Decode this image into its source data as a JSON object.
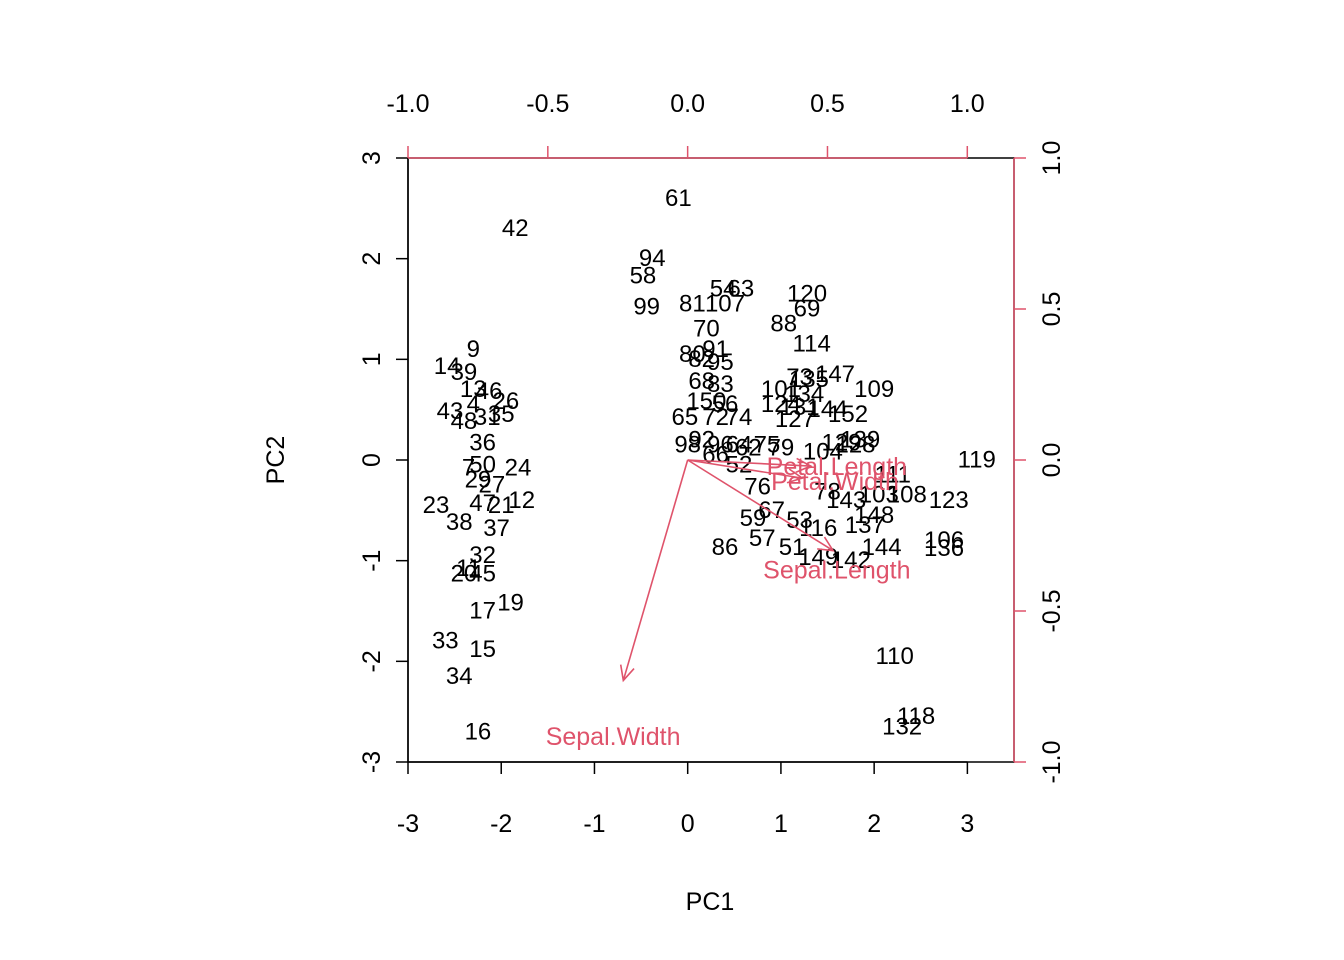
{
  "colors": {
    "points": "#000000",
    "loadings": "#DF536B",
    "frame": "#000000"
  },
  "chart_data": {
    "type": "scatter",
    "subtype": "biplot",
    "xlabel": "PC1",
    "ylabel": "PC2",
    "xlim": [
      -3,
      3.5
    ],
    "ylim": [
      -3,
      3
    ],
    "x_ticks": [
      "-3",
      "-2",
      "-1",
      "0",
      "1",
      "2",
      "3"
    ],
    "y_ticks": [
      "-3",
      "-2",
      "-1",
      "0",
      "1",
      "2",
      "3"
    ],
    "loading_axis_ticks_top": [
      "-1.0",
      "-0.5",
      "0.0",
      "0.5",
      "1.0"
    ],
    "loading_axis_ticks_right": [
      "-1.0",
      "-0.5",
      "0.0",
      "0.5",
      "1.0"
    ],
    "loading_xlim": [
      -1.0,
      1.167
    ],
    "loading_ylim": [
      -1.0,
      1.0
    ],
    "points": [
      {
        "label": "61",
        "x": -0.1,
        "y": 2.6
      },
      {
        "label": "42",
        "x": -1.85,
        "y": 2.3
      },
      {
        "label": "94",
        "x": -0.38,
        "y": 2.0
      },
      {
        "label": "58",
        "x": -0.48,
        "y": 1.83
      },
      {
        "label": "99",
        "x": -0.44,
        "y": 1.52
      },
      {
        "label": "54",
        "x": 0.38,
        "y": 1.7
      },
      {
        "label": "63",
        "x": 0.57,
        "y": 1.7
      },
      {
        "label": "81",
        "x": 0.05,
        "y": 1.55
      },
      {
        "label": "107",
        "x": 0.4,
        "y": 1.55
      },
      {
        "label": "70",
        "x": 0.2,
        "y": 1.3
      },
      {
        "label": "120",
        "x": 1.28,
        "y": 1.65
      },
      {
        "label": "69",
        "x": 1.28,
        "y": 1.5
      },
      {
        "label": "88",
        "x": 1.03,
        "y": 1.35
      },
      {
        "label": "114",
        "x": 1.33,
        "y": 1.15
      },
      {
        "label": "80",
        "x": 0.05,
        "y": 1.05
      },
      {
        "label": "82",
        "x": 0.15,
        "y": 1.0
      },
      {
        "label": "91",
        "x": 0.3,
        "y": 1.1
      },
      {
        "label": "95",
        "x": 0.35,
        "y": 0.97
      },
      {
        "label": "147",
        "x": 1.58,
        "y": 0.85
      },
      {
        "label": "109",
        "x": 2.0,
        "y": 0.7
      },
      {
        "label": "73",
        "x": 1.2,
        "y": 0.82
      },
      {
        "label": "135",
        "x": 1.3,
        "y": 0.8
      },
      {
        "label": "68",
        "x": 0.15,
        "y": 0.78
      },
      {
        "label": "83",
        "x": 0.35,
        "y": 0.75
      },
      {
        "label": "101",
        "x": 1.0,
        "y": 0.7
      },
      {
        "label": "134",
        "x": 1.25,
        "y": 0.65
      },
      {
        "label": "150",
        "x": 0.2,
        "y": 0.58
      },
      {
        "label": "56",
        "x": 0.4,
        "y": 0.55
      },
      {
        "label": "124",
        "x": 1.0,
        "y": 0.55
      },
      {
        "label": "131",
        "x": 1.2,
        "y": 0.52
      },
      {
        "label": "144",
        "x": 1.5,
        "y": 0.5
      },
      {
        "label": "152",
        "x": 1.72,
        "y": 0.45
      },
      {
        "label": "65",
        "x": -0.03,
        "y": 0.42
      },
      {
        "label": "72",
        "x": 0.3,
        "y": 0.42
      },
      {
        "label": "74",
        "x": 0.55,
        "y": 0.42
      },
      {
        "label": "127",
        "x": 1.15,
        "y": 0.4
      },
      {
        "label": "98",
        "x": 0.0,
        "y": 0.15
      },
      {
        "label": "92",
        "x": 0.15,
        "y": 0.2
      },
      {
        "label": "96",
        "x": 0.35,
        "y": 0.15
      },
      {
        "label": "64",
        "x": 0.55,
        "y": 0.15
      },
      {
        "label": "62",
        "x": 0.65,
        "y": 0.12
      },
      {
        "label": "75",
        "x": 0.85,
        "y": 0.15
      },
      {
        "label": "79",
        "x": 1.0,
        "y": 0.12
      },
      {
        "label": "128",
        "x": 1.8,
        "y": 0.15
      },
      {
        "label": "129",
        "x": 1.65,
        "y": 0.17
      },
      {
        "label": "139",
        "x": 1.85,
        "y": 0.2
      },
      {
        "label": "104",
        "x": 1.45,
        "y": 0.08
      },
      {
        "label": "66",
        "x": 0.3,
        "y": 0.05
      },
      {
        "label": "52",
        "x": 0.55,
        "y": -0.05
      },
      {
        "label": "119",
        "x": 3.1,
        "y": 0.0
      },
      {
        "label": "111",
        "x": 2.2,
        "y": -0.15
      },
      {
        "label": "108",
        "x": 2.35,
        "y": -0.35
      },
      {
        "label": "103",
        "x": 2.05,
        "y": -0.35
      },
      {
        "label": "123",
        "x": 2.8,
        "y": -0.4
      },
      {
        "label": "76",
        "x": 0.75,
        "y": -0.27
      },
      {
        "label": "78",
        "x": 1.5,
        "y": -0.32
      },
      {
        "label": "143",
        "x": 1.7,
        "y": -0.4
      },
      {
        "label": "67",
        "x": 0.9,
        "y": -0.5
      },
      {
        "label": "53",
        "x": 1.2,
        "y": -0.6
      },
      {
        "label": "148",
        "x": 2.0,
        "y": -0.55
      },
      {
        "label": "59",
        "x": 0.7,
        "y": -0.58
      },
      {
        "label": "57",
        "x": 0.8,
        "y": -0.78
      },
      {
        "label": "116",
        "x": 1.4,
        "y": -0.68
      },
      {
        "label": "137",
        "x": 1.9,
        "y": -0.65
      },
      {
        "label": "86",
        "x": 0.4,
        "y": -0.87
      },
      {
        "label": "51",
        "x": 1.12,
        "y": -0.87
      },
      {
        "label": "106",
        "x": 2.75,
        "y": -0.8
      },
      {
        "label": "136",
        "x": 2.75,
        "y": -0.88
      },
      {
        "label": "144",
        "x": 2.08,
        "y": -0.87
      },
      {
        "label": "149",
        "x": 1.4,
        "y": -0.97
      },
      {
        "label": "142",
        "x": 1.75,
        "y": -1.0
      },
      {
        "label": "110",
        "x": 2.22,
        "y": -1.95
      },
      {
        "label": "118",
        "x": 2.45,
        "y": -2.55
      },
      {
        "label": "132",
        "x": 2.3,
        "y": -2.65
      },
      {
        "label": "9",
        "x": -2.3,
        "y": 1.1
      },
      {
        "label": "14",
        "x": -2.58,
        "y": 0.93
      },
      {
        "label": "39",
        "x": -2.4,
        "y": 0.87
      },
      {
        "label": "13",
        "x": -2.3,
        "y": 0.7
      },
      {
        "label": "46",
        "x": -2.13,
        "y": 0.68
      },
      {
        "label": "26",
        "x": -1.95,
        "y": 0.58
      },
      {
        "label": "4",
        "x": -2.3,
        "y": 0.55
      },
      {
        "label": "43",
        "x": -2.55,
        "y": 0.48
      },
      {
        "label": "31",
        "x": -2.15,
        "y": 0.42
      },
      {
        "label": "35",
        "x": -2.0,
        "y": 0.45
      },
      {
        "label": "48",
        "x": -2.4,
        "y": 0.38
      },
      {
        "label": "36",
        "x": -2.2,
        "y": 0.17
      },
      {
        "label": "7",
        "x": -2.35,
        "y": -0.08
      },
      {
        "label": "50",
        "x": -2.2,
        "y": -0.05
      },
      {
        "label": "24",
        "x": -1.82,
        "y": -0.08
      },
      {
        "label": "29",
        "x": -2.25,
        "y": -0.2
      },
      {
        "label": "27",
        "x": -2.1,
        "y": -0.25
      },
      {
        "label": "12",
        "x": -1.78,
        "y": -0.4
      },
      {
        "label": "23",
        "x": -2.7,
        "y": -0.45
      },
      {
        "label": "47",
        "x": -2.2,
        "y": -0.43
      },
      {
        "label": "21",
        "x": -2.0,
        "y": -0.45
      },
      {
        "label": "38",
        "x": -2.45,
        "y": -0.62
      },
      {
        "label": "37",
        "x": -2.05,
        "y": -0.68
      },
      {
        "label": "32",
        "x": -2.2,
        "y": -0.95
      },
      {
        "label": "11",
        "x": -2.35,
        "y": -1.08
      },
      {
        "label": "20",
        "x": -2.4,
        "y": -1.13
      },
      {
        "label": "45",
        "x": -2.2,
        "y": -1.13
      },
      {
        "label": "17",
        "x": -2.2,
        "y": -1.5
      },
      {
        "label": "19",
        "x": -1.9,
        "y": -1.42
      },
      {
        "label": "33",
        "x": -2.6,
        "y": -1.8
      },
      {
        "label": "15",
        "x": -2.2,
        "y": -1.88
      },
      {
        "label": "34",
        "x": -2.45,
        "y": -2.15
      },
      {
        "label": "16",
        "x": -2.25,
        "y": -2.7
      }
    ],
    "loadings": [
      {
        "name": "Sepal.Length",
        "x": 0.52,
        "y": -0.3
      },
      {
        "name": "Sepal.Width",
        "x": -0.23,
        "y": -0.73
      },
      {
        "name": "Petal.Length",
        "x": 0.44,
        "y": -0.02
      },
      {
        "name": "Petal.Width",
        "x": 0.41,
        "y": -0.06
      }
    ],
    "loading_label_positions": [
      {
        "name": "Sepal.Length",
        "x": 1.6,
        "y": -1.1
      },
      {
        "name": "Sepal.Width",
        "x": -0.8,
        "y": -2.75
      },
      {
        "name": "Petal.Length",
        "x": 1.6,
        "y": -0.07
      },
      {
        "name": "Petal.Width",
        "x": 1.58,
        "y": -0.22
      }
    ]
  }
}
